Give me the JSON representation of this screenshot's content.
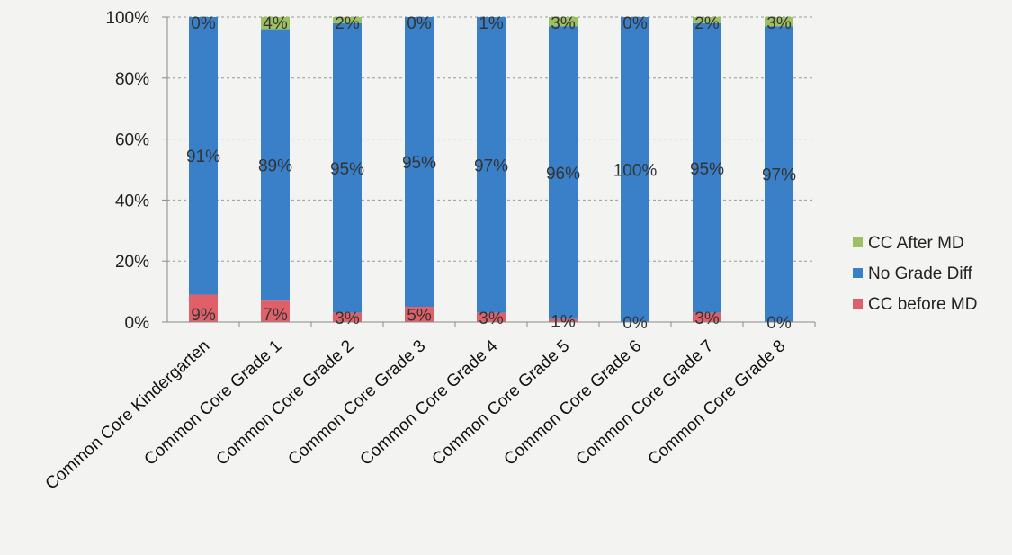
{
  "chart_data": {
    "type": "bar",
    "stacked": true,
    "percent_stacked": true,
    "categories": [
      "Common Core Kindergarten",
      "Common Core Grade 1",
      "Common Core Grade 2",
      "Common Core Grade 3",
      "Common Core Grade 4",
      "Common Core Grade 5",
      "Common Core Grade 6",
      "Common Core Grade 7",
      "Common Core Grade 8"
    ],
    "series": [
      {
        "name": "CC before MD",
        "color": "#e0606a",
        "values": [
          9,
          7,
          3,
          5,
          3,
          1,
          0,
          3,
          0
        ],
        "labels": [
          "9%",
          "7%",
          "3%",
          "5%",
          "3%",
          "1%",
          "0%",
          "3%",
          "0%"
        ]
      },
      {
        "name": "No Grade Diff",
        "color": "#3a80c8",
        "values": [
          91,
          89,
          95,
          95,
          97,
          96,
          100,
          95,
          97
        ],
        "labels": [
          "91%",
          "89%",
          "95%",
          "95%",
          "97%",
          "96%",
          "100%",
          "95%",
          "97%"
        ]
      },
      {
        "name": "CC After MD",
        "color": "#9dc160",
        "values": [
          0,
          4,
          2,
          0,
          1,
          3,
          0,
          2,
          3
        ],
        "labels": [
          "0%",
          "4%",
          "2%",
          "0%",
          "1%",
          "3%",
          "0%",
          "2%",
          "3%"
        ]
      }
    ],
    "y_ticks": [
      "0%",
      "20%",
      "40%",
      "60%",
      "80%",
      "100%"
    ],
    "ylim": [
      0,
      100
    ],
    "grid": true,
    "legend_position": "right",
    "legend_order": [
      "CC After MD",
      "No Grade Diff",
      "CC before MD"
    ]
  }
}
